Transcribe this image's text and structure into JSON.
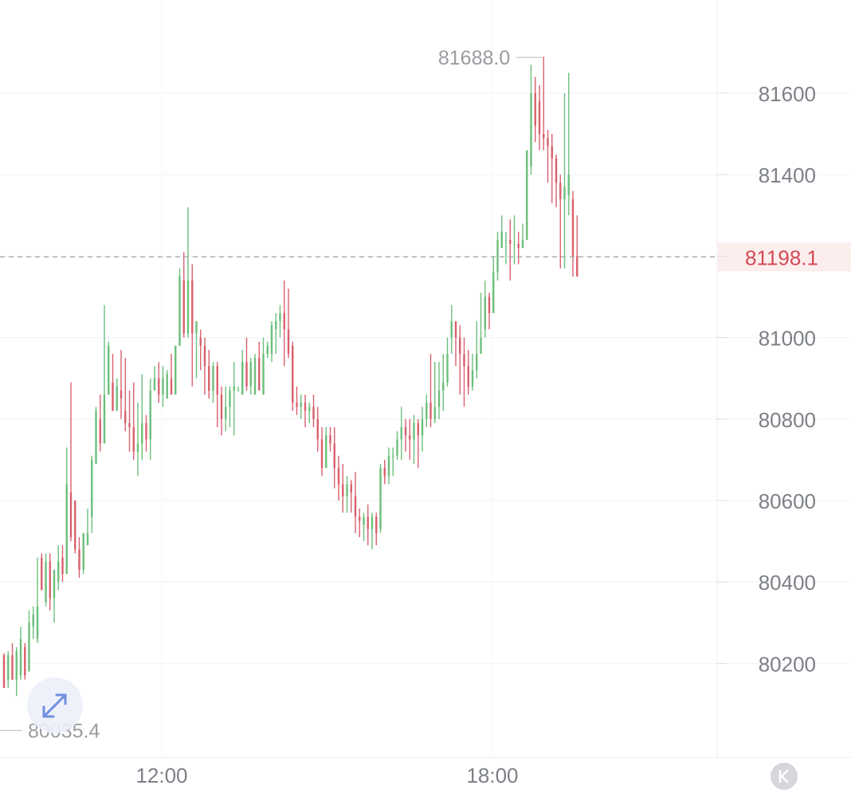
{
  "chart_data": {
    "type": "candlestick",
    "x_ticks": [
      "12:00",
      "18:00"
    ],
    "y_ticks": [
      80200,
      80400,
      80600,
      80800,
      81000,
      81200,
      81400,
      81600
    ],
    "ylim": [
      79960,
      81780
    ],
    "grid": true,
    "current_price": 81198.1,
    "current_price_label": "81198.1",
    "high": 81688.0,
    "high_label": "81688.0",
    "low": 80035.4,
    "low_label": "80035.4",
    "up_color": "#6cbf7b",
    "down_color": "#d9606c",
    "candles": [
      [
        80220,
        80140,
        80225,
        80140
      ],
      [
        80160,
        80220,
        80230,
        80140
      ],
      [
        80220,
        80160,
        80250,
        80160
      ],
      [
        80160,
        80230,
        80240,
        80120
      ],
      [
        80170,
        80260,
        80290,
        80160
      ],
      [
        80240,
        80170,
        80250,
        80160
      ],
      [
        80180,
        80300,
        80330,
        80180
      ],
      [
        80290,
        80320,
        80340,
        80260
      ],
      [
        80260,
        80340,
        80460,
        80250
      ],
      [
        80460,
        80380,
        80470,
        80380
      ],
      [
        80350,
        80450,
        80470,
        80340
      ],
      [
        80450,
        80360,
        80470,
        80330
      ],
      [
        80360,
        80430,
        80430,
        80300
      ],
      [
        80400,
        80450,
        80490,
        80380
      ],
      [
        80460,
        80420,
        80490,
        80400
      ],
      [
        80420,
        80640,
        80730,
        80420
      ],
      [
        80620,
        80510,
        80890,
        80500
      ],
      [
        80600,
        80480,
        80600,
        80470
      ],
      [
        80480,
        80430,
        80510,
        80410
      ],
      [
        80430,
        80520,
        80520,
        80420
      ],
      [
        80490,
        80520,
        80580,
        80500
      ],
      [
        80560,
        80700,
        80710,
        80520
      ],
      [
        80690,
        80820,
        80830,
        80690
      ],
      [
        80800,
        80740,
        80860,
        80720
      ],
      [
        80740,
        80860,
        81080,
        80740
      ],
      [
        80860,
        80980,
        80990,
        80860
      ],
      [
        80890,
        80820,
        80960,
        80820
      ],
      [
        80820,
        80880,
        80900,
        80820
      ],
      [
        80870,
        80850,
        80970,
        80800
      ],
      [
        80820,
        80790,
        80950,
        80770
      ],
      [
        80790,
        80780,
        80870,
        80720
      ],
      [
        80780,
        80720,
        80890,
        80700
      ],
      [
        80720,
        80740,
        80840,
        80660
      ],
      [
        80740,
        80790,
        80910,
        80700
      ],
      [
        80790,
        80750,
        80810,
        80720
      ],
      [
        80750,
        80870,
        80900,
        80700
      ],
      [
        80870,
        80900,
        80930,
        80880
      ],
      [
        80900,
        80860,
        80940,
        80840
      ],
      [
        80860,
        80900,
        80930,
        80830
      ],
      [
        80850,
        80910,
        80920,
        80880
      ],
      [
        80900,
        80860,
        80960,
        80860
      ],
      [
        80860,
        80980,
        80980,
        80860
      ],
      [
        80980,
        81150,
        81170,
        80980
      ],
      [
        81140,
        81010,
        81210,
        81000
      ],
      [
        81010,
        81140,
        81320,
        81000
      ],
      [
        81140,
        81010,
        81180,
        80880
      ],
      [
        81010,
        81040,
        81040,
        80900
      ],
      [
        81000,
        80980,
        81020,
        80920
      ],
      [
        80980,
        80930,
        81000,
        80860
      ],
      [
        80930,
        80870,
        80970,
        80850
      ],
      [
        80870,
        80930,
        80940,
        80840
      ],
      [
        80930,
        80860,
        80940,
        80780
      ],
      [
        80860,
        80800,
        80880,
        80760
      ],
      [
        80800,
        80830,
        80880,
        80770
      ],
      [
        80830,
        80870,
        80880,
        80780
      ],
      [
        80870,
        80880,
        80940,
        80760
      ],
      [
        80870,
        80870,
        80880,
        80870
      ],
      [
        80860,
        80940,
        80970,
        80860
      ],
      [
        80940,
        80880,
        81000,
        80870
      ],
      [
        80880,
        80940,
        80950,
        80860
      ],
      [
        80860,
        80950,
        80960,
        80860
      ],
      [
        80950,
        80870,
        80990,
        80870
      ],
      [
        80860,
        80960,
        81000,
        80860
      ],
      [
        80960,
        80980,
        80990,
        80950
      ],
      [
        80960,
        81030,
        81040,
        80940
      ],
      [
        81020,
        81040,
        81060,
        80960
      ],
      [
        81040,
        81060,
        81080,
        81000
      ],
      [
        81060,
        81020,
        81140,
        80930
      ],
      [
        81020,
        80960,
        81120,
        80950
      ],
      [
        80980,
        80840,
        80990,
        80820
      ],
      [
        80840,
        80830,
        80880,
        80810
      ],
      [
        80830,
        80840,
        80860,
        80800
      ],
      [
        80840,
        80820,
        80860,
        80780
      ],
      [
        80820,
        80830,
        80840,
        80790
      ],
      [
        80830,
        80800,
        80860,
        80780
      ],
      [
        80800,
        80750,
        80830,
        80720
      ],
      [
        80750,
        80680,
        80780,
        80660
      ],
      [
        80680,
        80760,
        80780,
        80680
      ],
      [
        80760,
        80740,
        80780,
        80720
      ],
      [
        80740,
        80680,
        80780,
        80630
      ],
      [
        80680,
        80640,
        80710,
        80600
      ],
      [
        80640,
        80610,
        80690,
        80570
      ],
      [
        80610,
        80640,
        80660,
        80570
      ],
      [
        80640,
        80620,
        80650,
        80570
      ],
      [
        80610,
        80560,
        80670,
        80520
      ],
      [
        80560,
        80550,
        80580,
        80510
      ],
      [
        80540,
        80560,
        80570,
        80500
      ],
      [
        80560,
        80530,
        80590,
        80490
      ],
      [
        80530,
        80560,
        80570,
        80480
      ],
      [
        80560,
        80520,
        80570,
        80490
      ],
      [
        80530,
        80680,
        80690,
        80520
      ],
      [
        80680,
        80660,
        80700,
        80640
      ],
      [
        80660,
        80710,
        80730,
        80640
      ],
      [
        80710,
        80710,
        80730,
        80660
      ],
      [
        80710,
        80750,
        80770,
        80700
      ],
      [
        80750,
        80780,
        80830,
        80700
      ],
      [
        80780,
        80760,
        80800,
        80720
      ],
      [
        80760,
        80750,
        80800,
        80700
      ],
      [
        80750,
        80790,
        80810,
        80690
      ],
      [
        80790,
        80760,
        80800,
        80680
      ],
      [
        80760,
        80800,
        80830,
        80720
      ],
      [
        80800,
        80840,
        80860,
        80780
      ],
      [
        80840,
        80800,
        80960,
        80780
      ],
      [
        80800,
        80830,
        80940,
        80790
      ],
      [
        80830,
        80870,
        80940,
        80800
      ],
      [
        80870,
        80890,
        80960,
        80820
      ],
      [
        80890,
        80960,
        81000,
        80880
      ],
      [
        81000,
        81040,
        81080,
        80960
      ],
      [
        81040,
        81000,
        81030,
        80930
      ],
      [
        81000,
        80960,
        81030,
        80860
      ],
      [
        80960,
        80930,
        81000,
        80830
      ],
      [
        80930,
        80880,
        80970,
        80860
      ],
      [
        80880,
        80920,
        80960,
        80870
      ],
      [
        80920,
        80960,
        81040,
        80900
      ],
      [
        80960,
        81000,
        81110,
        80980
      ],
      [
        81020,
        81100,
        81140,
        81000
      ],
      [
        81100,
        81060,
        81110,
        81020
      ],
      [
        81060,
        81160,
        81200,
        81100
      ],
      [
        81160,
        81240,
        81260,
        81140
      ],
      [
        81220,
        81260,
        81300,
        81240
      ],
      [
        81240,
        81240,
        81260,
        81180
      ],
      [
        81240,
        81230,
        81290,
        81140
      ],
      [
        81230,
        81230,
        81300,
        81180
      ],
      [
        81230,
        81220,
        81260,
        81180
      ],
      [
        81220,
        81240,
        81280,
        81220
      ],
      [
        81240,
        81460,
        81460,
        81240
      ],
      [
        81420,
        81600,
        81670,
        81400
      ],
      [
        81600,
        81520,
        81640,
        81480
      ],
      [
        81580,
        81500,
        81620,
        81460
      ],
      [
        81500,
        81490,
        81690,
        81460
      ],
      [
        81490,
        81470,
        81510,
        81380
      ],
      [
        81470,
        81440,
        81500,
        81330
      ],
      [
        81440,
        81380,
        81450,
        81320
      ],
      [
        81380,
        81340,
        81400,
        81170
      ],
      [
        81340,
        81370,
        81600,
        81170
      ],
      [
        81350,
        81400,
        81650,
        81300
      ],
      [
        81340,
        81200,
        81360,
        81150
      ],
      [
        81200,
        81150,
        81300,
        81150
      ]
    ]
  },
  "icons": {
    "expand": "expand-icon",
    "back": "k-back-icon"
  }
}
